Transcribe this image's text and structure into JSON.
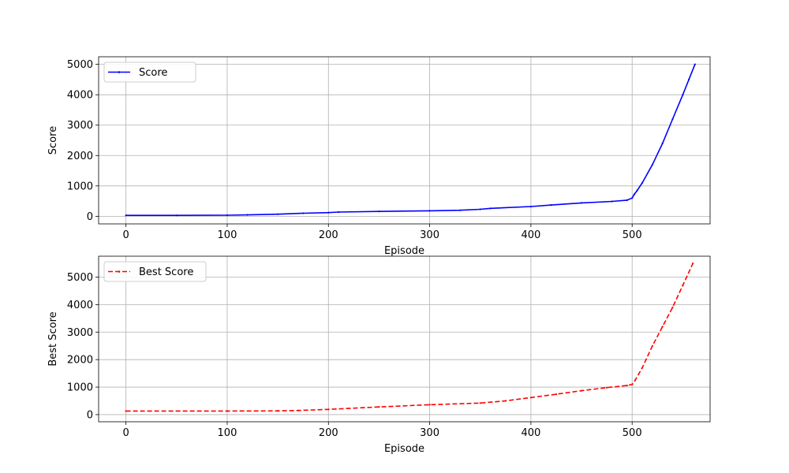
{
  "chart_data": [
    {
      "type": "line",
      "xlabel": "Episode",
      "ylabel": "Score",
      "xlim": [
        -27,
        577
      ],
      "ylim": [
        -250,
        5250
      ],
      "xticks": [
        0,
        100,
        200,
        300,
        400,
        500
      ],
      "yticks": [
        0,
        1000,
        2000,
        3000,
        4000,
        5000
      ],
      "grid": true,
      "legend_position": "top-left",
      "series": [
        {
          "name": "Score",
          "color": "#0000ff",
          "line_style": "solid",
          "marker": "point",
          "points": [
            [
              0,
              30
            ],
            [
              50,
              30
            ],
            [
              100,
              35
            ],
            [
              120,
              45
            ],
            [
              150,
              70
            ],
            [
              175,
              100
            ],
            [
              200,
              120
            ],
            [
              210,
              140
            ],
            [
              250,
              160
            ],
            [
              300,
              180
            ],
            [
              330,
              200
            ],
            [
              350,
              230
            ],
            [
              360,
              260
            ],
            [
              400,
              320
            ],
            [
              420,
              370
            ],
            [
              450,
              440
            ],
            [
              480,
              490
            ],
            [
              495,
              530
            ],
            [
              500,
              600
            ],
            [
              502,
              720
            ],
            [
              505,
              850
            ],
            [
              510,
              1100
            ],
            [
              520,
              1700
            ],
            [
              530,
              2400
            ],
            [
              540,
              3200
            ],
            [
              550,
              4000
            ],
            [
              556,
              4500
            ],
            [
              562,
              5000
            ]
          ]
        }
      ]
    },
    {
      "type": "line",
      "xlabel": "Episode",
      "ylabel": "Best Score",
      "xlim": [
        -27,
        577
      ],
      "ylim": [
        -260,
        5760
      ],
      "xticks": [
        0,
        100,
        200,
        300,
        400,
        500
      ],
      "yticks": [
        0,
        1000,
        2000,
        3000,
        4000,
        5000
      ],
      "grid": true,
      "legend_position": "top-left",
      "series": [
        {
          "name": "Best Score",
          "color": "#ff0000",
          "line_style": "dashed",
          "marker": "point",
          "points": [
            [
              0,
              130
            ],
            [
              100,
              130
            ],
            [
              150,
              135
            ],
            [
              170,
              150
            ],
            [
              200,
              190
            ],
            [
              250,
              280
            ],
            [
              300,
              360
            ],
            [
              350,
              420
            ],
            [
              375,
              500
            ],
            [
              400,
              620
            ],
            [
              425,
              740
            ],
            [
              450,
              870
            ],
            [
              475,
              980
            ],
            [
              495,
              1060
            ],
            [
              500,
              1100
            ],
            [
              503,
              1250
            ],
            [
              510,
              1700
            ],
            [
              520,
              2500
            ],
            [
              530,
              3200
            ],
            [
              540,
              3900
            ],
            [
              550,
              4700
            ],
            [
              560,
              5500
            ]
          ]
        }
      ]
    }
  ]
}
